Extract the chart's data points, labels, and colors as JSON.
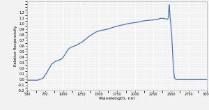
{
  "title": "",
  "xlabel": "Wavelength, nm",
  "ylabel": "Relative Responsivity",
  "xlim": [
    500,
    3000
  ],
  "ylim": [
    -0.2,
    1.4
  ],
  "yticks": [
    -0.2,
    -0.1,
    0.0,
    0.1,
    0.2,
    0.3,
    0.4,
    0.5,
    0.6,
    0.7,
    0.8,
    0.9,
    1.0,
    1.1,
    1.2
  ],
  "xticks": [
    500,
    750,
    1000,
    1250,
    1500,
    1750,
    2000,
    2250,
    2500,
    2750,
    3000
  ],
  "line_color": "#4472C4",
  "bg_color": "#f2f2f2",
  "grid_color": "#ffffff",
  "spine_color": "#aaaaaa",
  "xlabel_fontsize": 4.5,
  "ylabel_fontsize": 4.0,
  "tick_fontsize": 3.5,
  "line_width": 0.9,
  "curve": [
    [
      500,
      -0.02
    ],
    [
      550,
      -0.02
    ],
    [
      600,
      -0.02
    ],
    [
      620,
      -0.02
    ],
    [
      640,
      -0.02
    ],
    [
      660,
      -0.015
    ],
    [
      680,
      -0.005
    ],
    [
      700,
      0.005
    ],
    [
      710,
      0.01
    ],
    [
      720,
      0.02
    ],
    [
      730,
      0.03
    ],
    [
      740,
      0.05
    ],
    [
      750,
      0.07
    ],
    [
      760,
      0.09
    ],
    [
      770,
      0.11
    ],
    [
      780,
      0.13
    ],
    [
      790,
      0.155
    ],
    [
      800,
      0.18
    ],
    [
      810,
      0.2
    ],
    [
      820,
      0.22
    ],
    [
      830,
      0.245
    ],
    [
      840,
      0.265
    ],
    [
      850,
      0.275
    ],
    [
      860,
      0.285
    ],
    [
      870,
      0.295
    ],
    [
      880,
      0.305
    ],
    [
      890,
      0.315
    ],
    [
      900,
      0.32
    ],
    [
      910,
      0.325
    ],
    [
      920,
      0.33
    ],
    [
      930,
      0.335
    ],
    [
      940,
      0.34
    ],
    [
      950,
      0.345
    ],
    [
      960,
      0.35
    ],
    [
      970,
      0.355
    ],
    [
      980,
      0.365
    ],
    [
      990,
      0.375
    ],
    [
      1000,
      0.39
    ],
    [
      1010,
      0.41
    ],
    [
      1020,
      0.43
    ],
    [
      1030,
      0.45
    ],
    [
      1040,
      0.47
    ],
    [
      1050,
      0.495
    ],
    [
      1060,
      0.515
    ],
    [
      1070,
      0.53
    ],
    [
      1080,
      0.545
    ],
    [
      1090,
      0.555
    ],
    [
      1100,
      0.565
    ],
    [
      1110,
      0.57
    ],
    [
      1120,
      0.575
    ],
    [
      1130,
      0.58
    ],
    [
      1140,
      0.585
    ],
    [
      1150,
      0.59
    ],
    [
      1160,
      0.595
    ],
    [
      1170,
      0.6
    ],
    [
      1200,
      0.62
    ],
    [
      1250,
      0.655
    ],
    [
      1300,
      0.7
    ],
    [
      1350,
      0.755
    ],
    [
      1400,
      0.8
    ],
    [
      1450,
      0.84
    ],
    [
      1500,
      0.865
    ],
    [
      1550,
      0.88
    ],
    [
      1600,
      0.89
    ],
    [
      1650,
      0.91
    ],
    [
      1700,
      0.93
    ],
    [
      1750,
      0.95
    ],
    [
      1800,
      0.965
    ],
    [
      1850,
      0.98
    ],
    [
      1900,
      0.995
    ],
    [
      1950,
      1.005
    ],
    [
      2000,
      1.015
    ],
    [
      2050,
      1.025
    ],
    [
      2100,
      1.04
    ],
    [
      2150,
      1.05
    ],
    [
      2200,
      1.055
    ],
    [
      2220,
      1.06
    ],
    [
      2240,
      1.06
    ],
    [
      2260,
      1.065
    ],
    [
      2280,
      1.065
    ],
    [
      2290,
      1.065
    ],
    [
      2300,
      1.07
    ],
    [
      2310,
      1.07
    ],
    [
      2320,
      1.075
    ],
    [
      2330,
      1.08
    ],
    [
      2340,
      1.085
    ],
    [
      2350,
      1.09
    ],
    [
      2360,
      1.09
    ],
    [
      2370,
      1.09
    ],
    [
      2380,
      1.09
    ],
    [
      2390,
      1.09
    ],
    [
      2400,
      1.09
    ],
    [
      2410,
      1.085
    ],
    [
      2420,
      1.08
    ],
    [
      2430,
      1.08
    ],
    [
      2440,
      1.075
    ],
    [
      2450,
      1.075
    ],
    [
      2455,
      1.08
    ],
    [
      2460,
      1.095
    ],
    [
      2465,
      1.13
    ],
    [
      2468,
      1.2
    ],
    [
      2471,
      1.295
    ],
    [
      2474,
      1.335
    ],
    [
      2477,
      1.31
    ],
    [
      2480,
      1.255
    ],
    [
      2483,
      1.195
    ],
    [
      2487,
      1.13
    ],
    [
      2490,
      1.075
    ],
    [
      2495,
      1.02
    ],
    [
      2500,
      0.95
    ],
    [
      2505,
      0.87
    ],
    [
      2510,
      0.78
    ],
    [
      2515,
      0.67
    ],
    [
      2520,
      0.55
    ],
    [
      2525,
      0.42
    ],
    [
      2530,
      0.3
    ],
    [
      2535,
      0.2
    ],
    [
      2540,
      0.12
    ],
    [
      2545,
      0.06
    ],
    [
      2550,
      0.025
    ],
    [
      2555,
      0.008
    ],
    [
      2560,
      0.002
    ],
    [
      2565,
      0.0
    ],
    [
      2570,
      -0.005
    ],
    [
      2580,
      -0.008
    ],
    [
      2600,
      -0.01
    ],
    [
      2650,
      -0.01
    ],
    [
      2700,
      -0.01
    ],
    [
      2750,
      -0.01
    ],
    [
      2800,
      -0.01
    ],
    [
      2850,
      -0.01
    ],
    [
      2900,
      -0.01
    ],
    [
      2950,
      -0.01
    ],
    [
      3000,
      -0.01
    ]
  ]
}
